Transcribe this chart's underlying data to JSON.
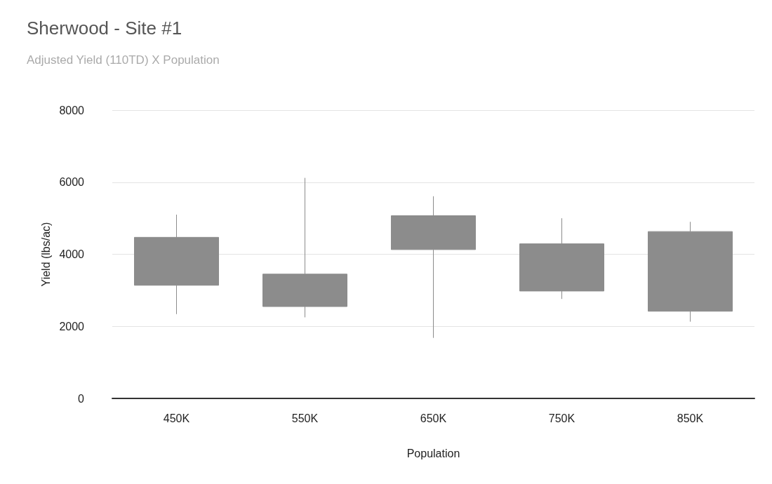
{
  "chart_data": {
    "type": "candlestick",
    "title": "Sherwood - Site #1",
    "subtitle": "Adjusted Yield (110TD) X Population",
    "xlabel": "Population",
    "ylabel": "Yield (lbs/ac)",
    "categories": [
      "450K",
      "550K",
      "650K",
      "750K",
      "850K"
    ],
    "ohlc": [
      [
        3140,
        5100,
        2340,
        4470
      ],
      [
        2550,
        6120,
        2250,
        3450
      ],
      [
        4130,
        5610,
        1680,
        5070
      ],
      [
        2980,
        5000,
        2760,
        4290
      ],
      [
        2420,
        4900,
        2130,
        4630
      ]
    ],
    "color": "#8c8c8c",
    "ylim": [
      0,
      8000
    ],
    "yticks": [
      0,
      2000,
      4000,
      6000,
      8000
    ],
    "grid": "y"
  }
}
